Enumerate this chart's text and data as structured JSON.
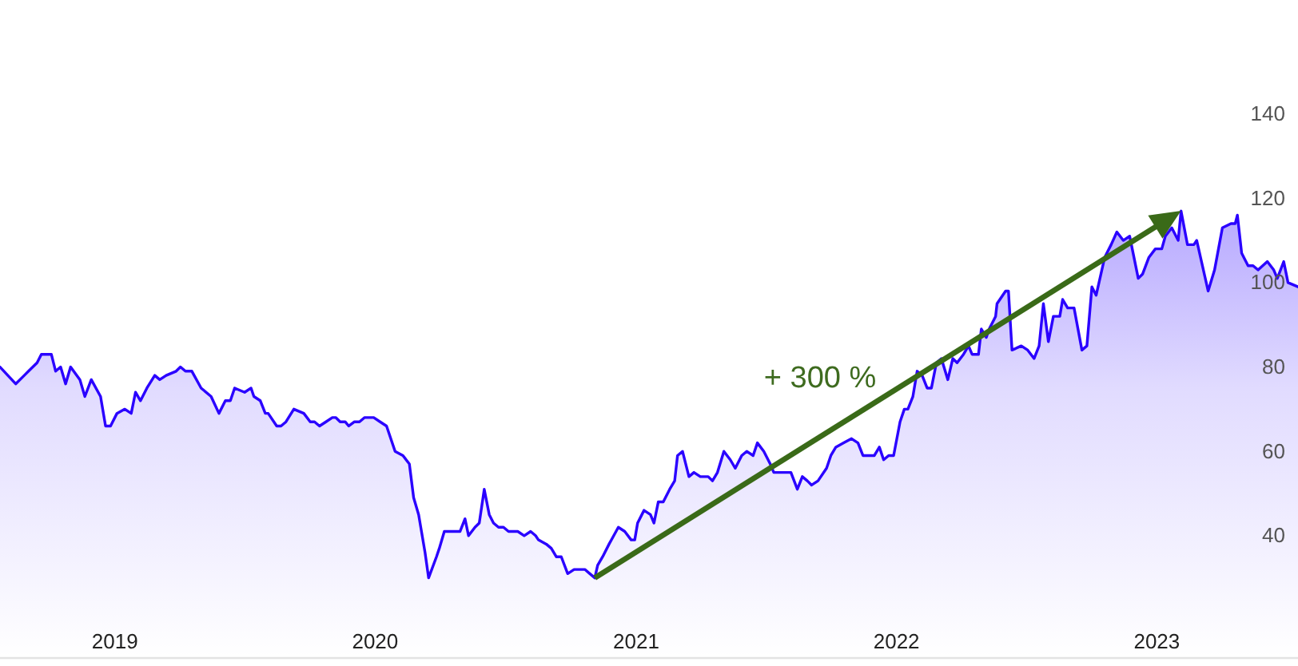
{
  "chart_data": {
    "type": "area",
    "annotations": [
      "+ 300 %"
    ],
    "x": [
      "2018-07-24",
      "2018-08-04",
      "2018-08-15",
      "2018-08-27",
      "2018-09-02",
      "2018-09-14",
      "2018-09-20",
      "2018-10-04",
      "2018-10-10",
      "2018-10-17",
      "2018-10-24",
      "2018-10-31",
      "2018-11-13",
      "2018-11-20",
      "2018-11-29",
      "2018-12-12",
      "2018-12-19",
      "2018-12-26",
      "2019-01-04",
      "2019-01-15",
      "2019-01-24",
      "2019-01-30",
      "2019-02-06",
      "2019-02-15",
      "2019-02-26",
      "2019-03-05",
      "2019-03-14",
      "2019-03-28",
      "2019-04-03",
      "2019-04-10",
      "2019-04-19",
      "2019-05-02",
      "2019-05-16",
      "2019-05-27",
      "2019-06-05",
      "2019-06-12",
      "2019-06-18",
      "2019-07-02",
      "2019-07-11",
      "2019-07-15",
      "2019-07-24",
      "2019-07-31",
      "2019-08-04",
      "2019-08-16",
      "2019-08-22",
      "2019-08-29",
      "2019-09-09",
      "2019-09-23",
      "2019-10-02",
      "2019-10-08",
      "2019-10-15",
      "2019-10-24",
      "2019-11-02",
      "2019-11-07",
      "2019-11-13",
      "2019-11-20",
      "2019-11-25",
      "2019-12-03",
      "2019-12-10",
      "2019-12-17",
      "2019-12-30",
      "2020-01-08",
      "2020-01-17",
      "2020-01-29",
      "2020-02-09",
      "2020-02-18",
      "2020-02-24",
      "2020-03-02",
      "2020-03-11",
      "2020-03-16",
      "2020-03-27",
      "2020-03-31",
      "2020-04-07",
      "2020-04-18",
      "2020-04-25",
      "2020-04-29",
      "2020-05-06",
      "2020-05-11",
      "2020-05-20",
      "2020-05-26",
      "2020-06-02",
      "2020-06-09",
      "2020-06-15",
      "2020-06-22",
      "2020-06-29",
      "2020-07-06",
      "2020-07-12",
      "2020-07-19",
      "2020-07-28",
      "2020-08-06",
      "2020-08-13",
      "2020-08-17",
      "2020-08-28",
      "2020-09-04",
      "2020-09-11",
      "2020-09-18",
      "2020-09-27",
      "2020-10-06",
      "2020-10-12",
      "2020-10-21",
      "2020-10-28",
      "2020-11-04",
      "2020-11-08",
      "2020-11-15",
      "2020-11-24",
      "2020-12-07",
      "2020-12-16",
      "2020-12-25",
      "2020-12-30",
      "2021-01-03",
      "2021-01-12",
      "2021-01-21",
      "2021-01-26",
      "2021-02-01",
      "2021-02-08",
      "2021-02-17",
      "2021-02-24",
      "2021-02-28",
      "2021-03-07",
      "2021-03-16",
      "2021-03-23",
      "2021-04-01",
      "2021-04-07",
      "2021-04-12",
      "2021-04-18",
      "2021-04-25",
      "2021-05-04",
      "2021-05-13",
      "2021-05-20",
      "2021-05-29",
      "2021-06-05",
      "2021-06-14",
      "2021-06-20",
      "2021-06-29",
      "2021-07-08",
      "2021-07-13",
      "2021-07-26",
      "2021-08-06",
      "2021-08-15",
      "2021-08-22",
      "2021-08-29",
      "2021-09-04",
      "2021-09-13",
      "2021-09-25",
      "2021-10-01",
      "2021-10-08",
      "2021-10-19",
      "2021-10-30",
      "2021-11-08",
      "2021-11-15",
      "2021-11-24",
      "2021-12-01",
      "2021-12-08",
      "2021-12-14",
      "2021-12-21",
      "2021-12-28",
      "2022-01-06",
      "2022-01-12",
      "2022-01-17",
      "2022-01-24",
      "2022-01-30",
      "2022-02-06",
      "2022-02-13",
      "2022-02-19",
      "2022-02-26",
      "2022-03-05",
      "2022-03-14",
      "2022-03-21",
      "2022-03-27",
      "2022-04-05",
      "2022-04-12",
      "2022-04-17",
      "2022-04-26",
      "2022-04-30",
      "2022-05-07",
      "2022-05-11",
      "2022-05-20",
      "2022-05-22",
      "2022-06-03",
      "2022-06-07",
      "2022-06-12",
      "2022-06-25",
      "2022-07-04",
      "2022-07-13",
      "2022-07-20",
      "2022-07-26",
      "2022-08-02",
      "2022-08-09",
      "2022-08-18",
      "2022-08-22",
      "2022-08-29",
      "2022-09-07",
      "2022-09-18",
      "2022-09-25",
      "2022-10-02",
      "2022-10-08",
      "2022-10-20",
      "2022-10-29",
      "2022-11-06",
      "2022-11-15",
      "2022-11-24",
      "2022-12-06",
      "2022-12-12",
      "2022-12-21",
      "2022-12-30",
      "2023-01-08",
      "2023-01-13",
      "2023-01-22",
      "2023-01-31",
      "2023-02-04",
      "2023-02-13",
      "2023-02-22",
      "2023-02-26",
      "2023-03-14",
      "2023-03-23",
      "2023-04-03",
      "2023-04-15",
      "2023-04-21",
      "2023-04-24",
      "2023-04-30",
      "2023-05-09",
      "2023-05-16",
      "2023-05-23",
      "2023-06-05",
      "2023-06-14",
      "2023-06-19",
      "2023-06-28",
      "2023-07-04",
      "2023-07-18"
    ],
    "series": [
      {
        "color": "#2a00ff",
        "values": [
          80,
          78,
          76,
          78,
          79,
          81,
          83,
          83,
          79,
          80,
          76,
          80,
          77,
          73,
          77,
          73,
          66,
          66,
          69,
          70,
          69,
          74,
          72,
          75,
          78,
          77,
          78,
          79,
          80,
          79,
          79,
          75,
          73,
          69,
          72,
          72,
          75,
          74,
          75,
          73,
          72,
          69,
          69,
          66,
          66,
          67,
          70,
          69,
          67,
          67,
          66,
          67,
          68,
          68,
          67,
          67,
          66,
          67,
          67,
          68,
          68,
          67,
          66,
          60,
          59,
          57,
          49,
          45,
          36,
          30,
          35,
          37,
          41,
          41,
          41,
          41,
          44,
          40,
          42,
          43,
          51,
          45,
          43,
          42,
          42,
          41,
          41,
          41,
          40,
          41,
          40,
          39,
          38,
          37,
          35,
          35,
          31,
          32,
          32,
          32,
          31,
          30,
          33,
          35,
          38,
          42,
          41,
          39,
          39,
          43,
          46,
          45,
          43,
          48,
          48,
          51,
          53,
          59,
          60,
          54,
          55,
          54,
          54,
          54,
          53,
          55,
          60,
          58,
          56,
          59,
          60,
          59,
          62,
          60,
          57,
          55,
          55,
          55,
          51,
          54,
          53,
          52,
          53,
          56,
          59,
          61,
          62,
          63,
          62,
          59,
          59,
          59,
          61,
          58,
          59,
          59,
          67,
          70,
          70,
          73,
          79,
          78,
          75,
          75,
          81,
          82,
          77,
          82,
          81,
          83,
          85,
          83,
          83,
          89,
          87,
          89,
          92,
          95,
          98,
          98,
          84,
          85,
          84,
          82,
          85,
          95,
          86,
          92,
          92,
          96,
          94,
          94,
          84,
          85,
          99,
          97,
          106,
          109,
          112,
          110,
          111,
          101,
          102,
          106,
          108,
          108,
          111,
          113,
          110,
          117,
          109,
          109,
          110,
          98,
          103,
          113,
          114,
          114,
          116,
          107,
          104,
          104,
          103,
          105,
          103,
          101,
          105,
          100,
          99
        ]
      }
    ],
    "xlim": [
      "2018-07-24",
      "2023-07-18"
    ],
    "ylim": [
      11,
      167
    ],
    "xticks": [
      {
        "value": "2019-01-01",
        "label": "2019"
      },
      {
        "value": "2020-01-01",
        "label": "2020"
      },
      {
        "value": "2021-01-01",
        "label": "2021"
      },
      {
        "value": "2022-01-01",
        "label": "2022"
      },
      {
        "value": "2023-01-01",
        "label": "2023"
      }
    ],
    "yticks": [
      40,
      60,
      80,
      100,
      120,
      140
    ]
  }
}
